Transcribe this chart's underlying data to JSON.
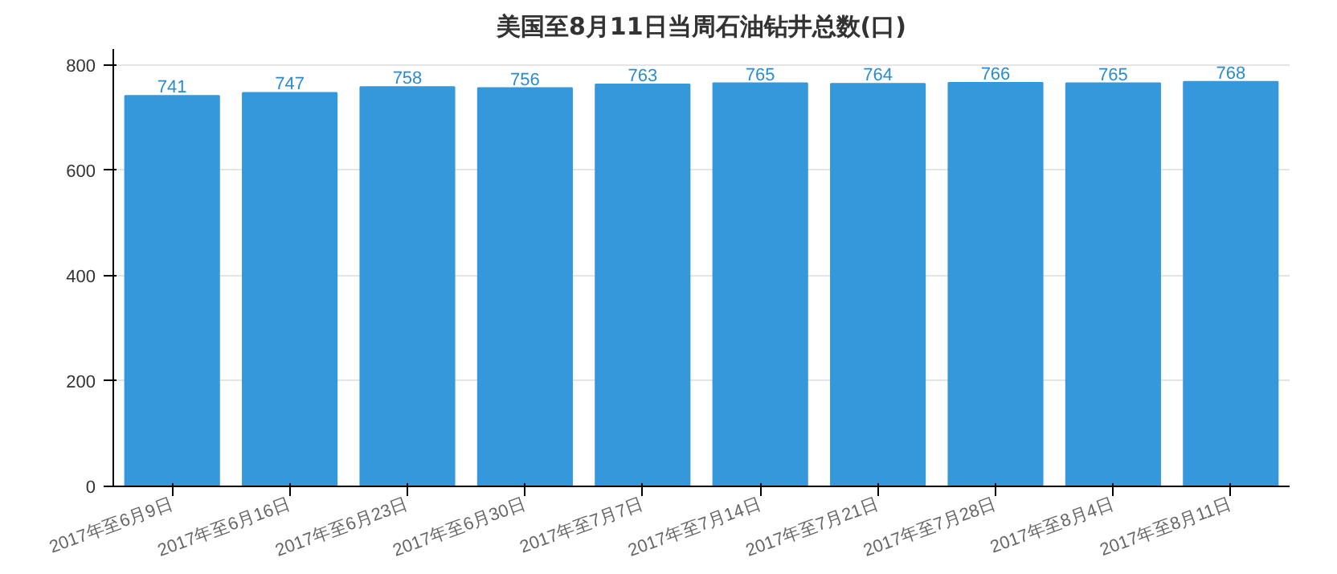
{
  "chart_data": {
    "type": "bar",
    "title": "美国至8月11日当周石油钻井总数(口)",
    "categories": [
      "2017年至6月9日",
      "2017年至6月16日",
      "2017年至6月23日",
      "2017年至6月30日",
      "2017年至7月7日",
      "2017年至7月14日",
      "2017年至7月21日",
      "2017年至7月28日",
      "2017年至8月4日",
      "2017年至8月11日"
    ],
    "values": [
      741,
      747,
      758,
      756,
      763,
      765,
      764,
      766,
      765,
      768
    ],
    "color": "#3498db",
    "ylim": [
      0,
      830
    ],
    "yticks": [
      0,
      200,
      400,
      600,
      800
    ],
    "grid": "y",
    "data_labels": true
  }
}
